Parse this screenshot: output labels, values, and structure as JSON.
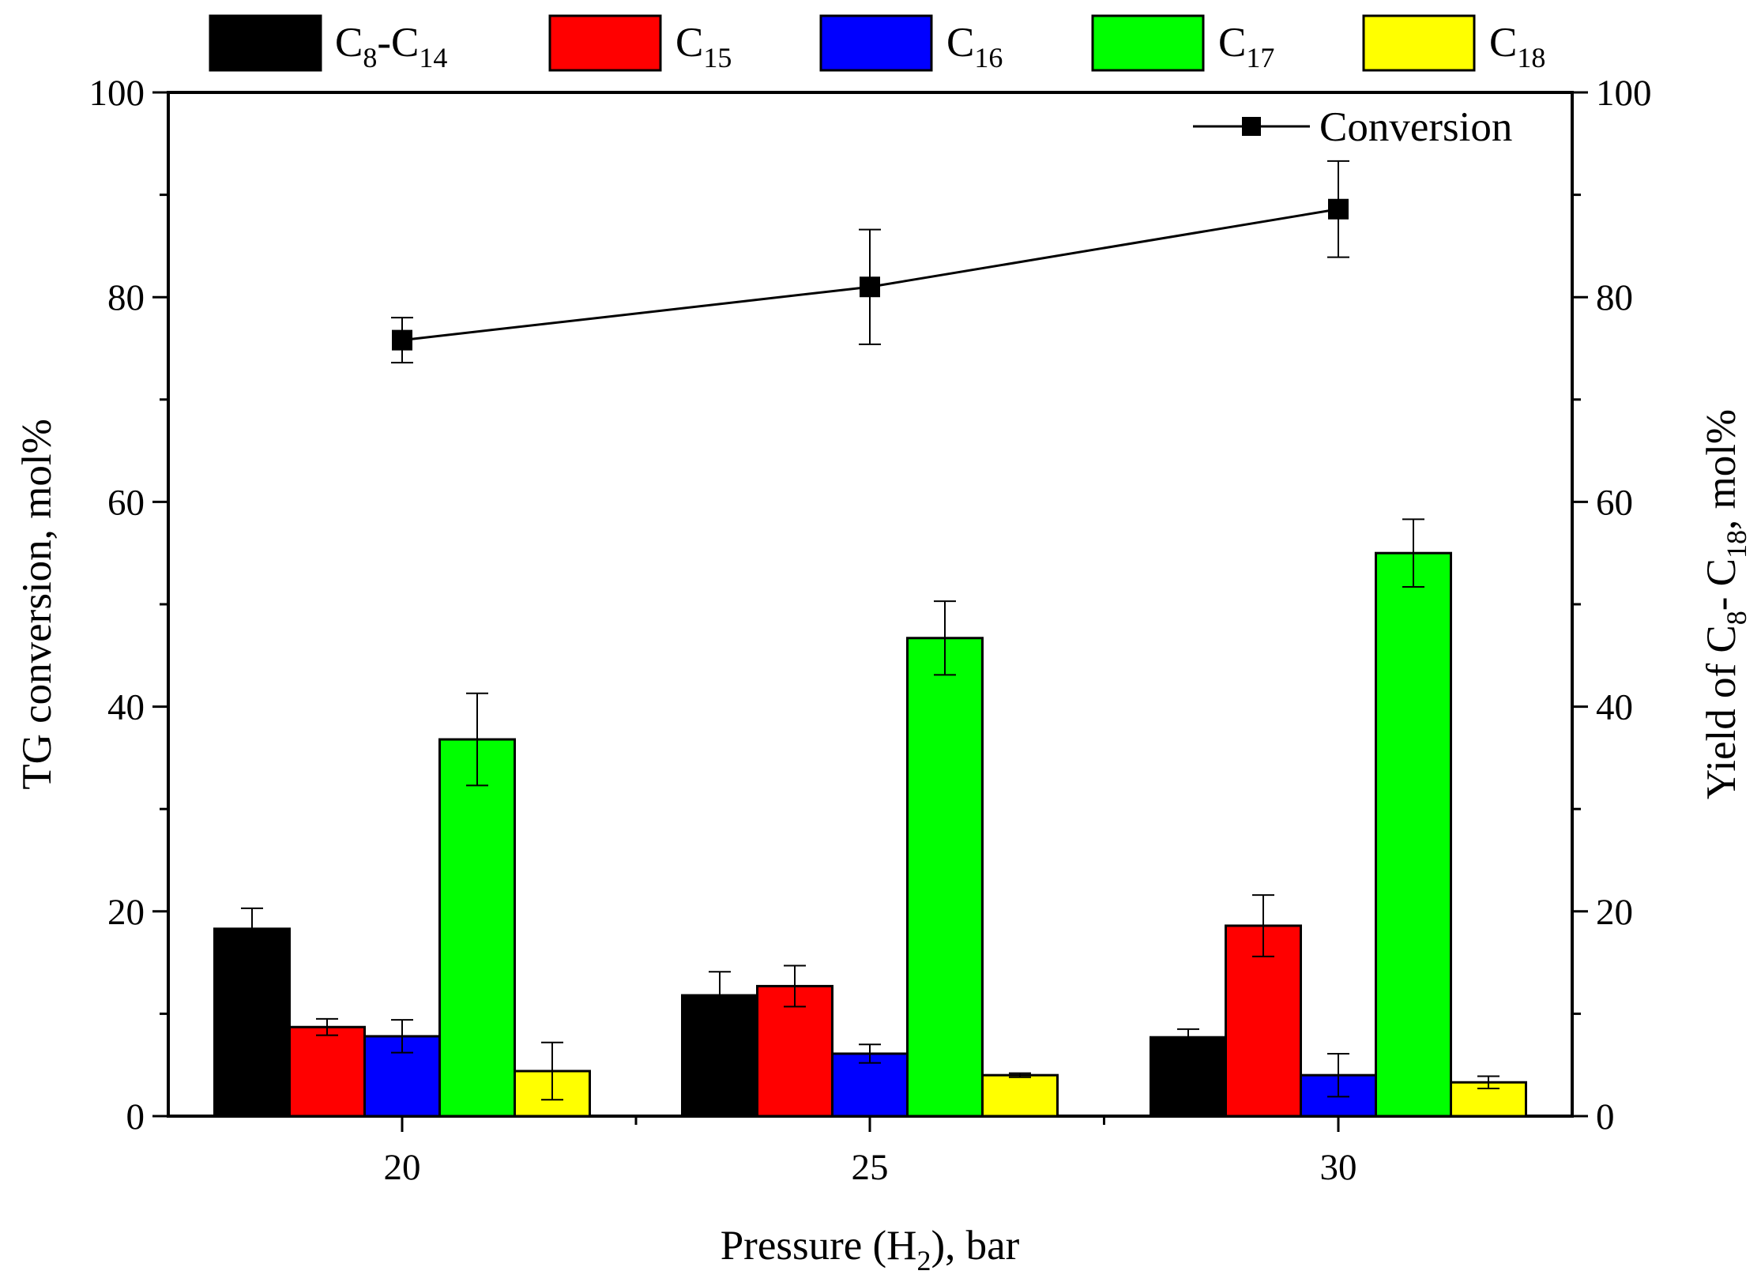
{
  "chart_data": {
    "type": "bar",
    "categories": [
      "20",
      "25",
      "30"
    ],
    "xlabel": {
      "main": "Pressure (H",
      "sub": "2",
      "tail": "), bar"
    },
    "ylabel_left": "TG conversion, mol%",
    "ylabel_right": {
      "p1": "Yield of C",
      "s1": "8",
      "p2": "- C",
      "s2": "18",
      "p3": ", mol%"
    },
    "ylim": [
      0,
      100
    ],
    "yticks": [
      0,
      20,
      40,
      60,
      80,
      100
    ],
    "series": [
      {
        "name": "C8-C14",
        "label": {
          "base": "C",
          "sub": "8",
          "mid": "-C",
          "sub2": "14"
        },
        "color": "#000000",
        "values": [
          18.3,
          11.8,
          7.7
        ],
        "errors": [
          2.0,
          2.3,
          0.8
        ]
      },
      {
        "name": "C15",
        "label": {
          "base": "C",
          "sub": "15"
        },
        "color": "#ff0000",
        "values": [
          8.7,
          12.7,
          18.6
        ],
        "errors": [
          0.8,
          2.0,
          3.0
        ]
      },
      {
        "name": "C16",
        "label": {
          "base": "C",
          "sub": "16"
        },
        "color": "#0000ff",
        "values": [
          7.8,
          6.1,
          4.0
        ],
        "errors": [
          1.6,
          0.9,
          2.1
        ]
      },
      {
        "name": "C17",
        "label": {
          "base": "C",
          "sub": "17"
        },
        "color": "#00ff00",
        "values": [
          36.8,
          46.7,
          55.0
        ],
        "errors": [
          4.5,
          3.6,
          3.3
        ]
      },
      {
        "name": "C18",
        "label": {
          "base": "C",
          "sub": "18"
        },
        "color": "#ffff00",
        "values": [
          4.4,
          4.0,
          3.3
        ],
        "errors": [
          2.8,
          0.2,
          0.6
        ]
      }
    ],
    "line_series": {
      "name": "Conversion",
      "label": "Conversion",
      "color": "#000000",
      "x": [
        "20",
        "25",
        "30"
      ],
      "values": [
        75.8,
        81.0,
        88.6
      ],
      "errors": [
        2.2,
        5.6,
        4.7
      ]
    },
    "legend_placement": "top (bars), upper-right inside plot (line)"
  }
}
